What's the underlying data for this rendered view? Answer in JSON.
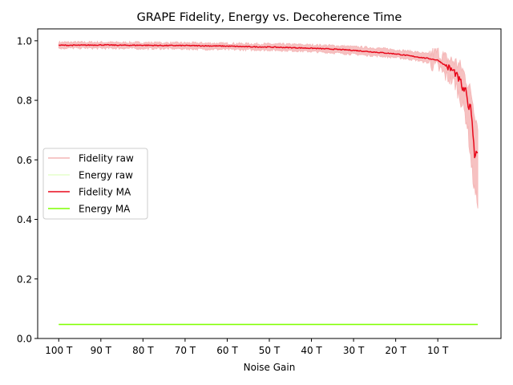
{
  "chart_data": {
    "type": "line",
    "title": "GRAPE Fidelity, Energy vs. Decoherence Time",
    "xlabel": "Noise Gain",
    "ylabel": "",
    "xlim": [
      105,
      -5
    ],
    "ylim": [
      0,
      1.04
    ],
    "x_ticks": [
      100,
      90,
      80,
      70,
      60,
      50,
      40,
      30,
      20,
      10
    ],
    "x_tick_labels": [
      "100 T",
      "90 T",
      "80 T",
      "70 T",
      "60 T",
      "50 T",
      "40 T",
      "30 T",
      "20 T",
      "10 T"
    ],
    "y_ticks": [
      0.0,
      0.2,
      0.4,
      0.6,
      0.8,
      1.0
    ],
    "y_tick_labels": [
      "0.0",
      "0.2",
      "0.4",
      "0.6",
      "0.8",
      "1.0"
    ],
    "grid": false,
    "legend_position": "center-left",
    "legend": [
      "Fidelity raw",
      "Energy raw",
      "Fidelity MA",
      "Energy MA"
    ],
    "series": [
      {
        "name": "Fidelity raw",
        "color": "#f4b6b6",
        "x": [
          100,
          95,
          90,
          85,
          80,
          75,
          70,
          65,
          60,
          55,
          50,
          45,
          40,
          35,
          30,
          25,
          20,
          15,
          12,
          10,
          8,
          6,
          5,
          4,
          3,
          2.5,
          2,
          1.5,
          1,
          0.5
        ],
        "upper": [
          0.995,
          0.995,
          0.995,
          0.994,
          0.994,
          0.993,
          0.993,
          0.992,
          0.991,
          0.99,
          0.989,
          0.988,
          0.986,
          0.984,
          0.98,
          0.976,
          0.97,
          0.962,
          0.955,
          0.96,
          0.94,
          0.93,
          0.92,
          0.9,
          0.86,
          0.84,
          0.82,
          0.78,
          0.74,
          0.72
        ],
        "lower": [
          0.975,
          0.976,
          0.975,
          0.975,
          0.974,
          0.974,
          0.973,
          0.972,
          0.971,
          0.97,
          0.969,
          0.967,
          0.964,
          0.96,
          0.955,
          0.95,
          0.944,
          0.935,
          0.925,
          0.91,
          0.88,
          0.86,
          0.82,
          0.78,
          0.72,
          0.65,
          0.58,
          0.52,
          0.48,
          0.46
        ]
      },
      {
        "name": "Energy raw",
        "color": "#e6ffcc",
        "x": [
          100,
          0.5
        ],
        "values": [
          0.047,
          0.047
        ]
      },
      {
        "name": "Fidelity MA",
        "color": "#e8091b",
        "x": [
          100,
          95,
          90,
          85,
          80,
          75,
          70,
          65,
          60,
          55,
          50,
          45,
          40,
          35,
          30,
          25,
          20,
          15,
          12,
          10,
          8,
          7,
          6,
          5,
          4.5,
          4,
          3.5,
          3,
          2.5,
          2.2,
          2,
          1.8,
          1.5,
          1.2,
          1,
          0.8,
          0.5
        ],
        "values": [
          0.985,
          0.985,
          0.986,
          0.985,
          0.985,
          0.984,
          0.984,
          0.983,
          0.982,
          0.98,
          0.979,
          0.977,
          0.975,
          0.972,
          0.968,
          0.962,
          0.956,
          0.946,
          0.94,
          0.935,
          0.915,
          0.905,
          0.895,
          0.87,
          0.86,
          0.83,
          0.84,
          0.8,
          0.77,
          0.79,
          0.76,
          0.72,
          0.66,
          0.6,
          0.64,
          0.62,
          0.63
        ]
      },
      {
        "name": "Energy MA",
        "color": "#7fff00",
        "x": [
          100,
          0.5
        ],
        "values": [
          0.047,
          0.047
        ]
      }
    ]
  }
}
